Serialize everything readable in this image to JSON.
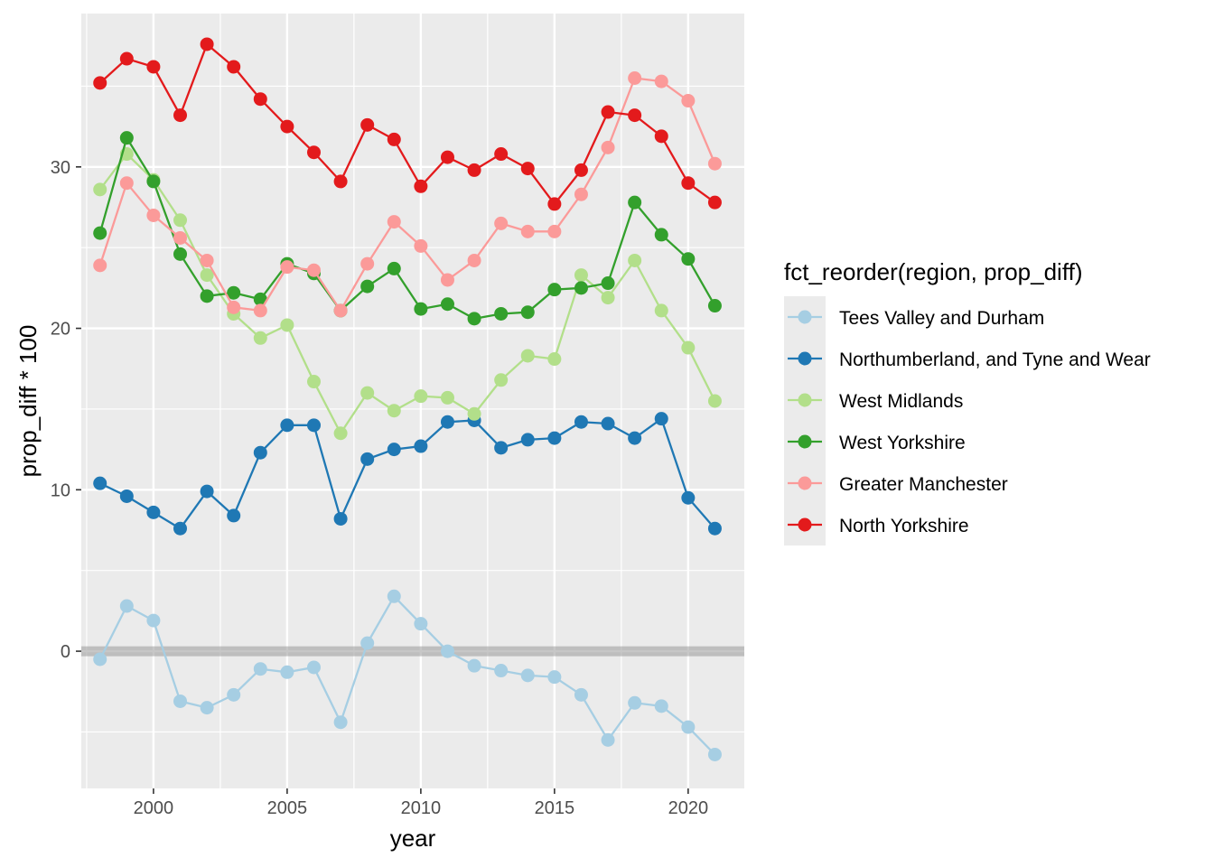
{
  "chart_data": {
    "type": "line",
    "xlabel": "year",
    "ylabel": "prop_diff * 100",
    "xlim": [
      1997.3,
      2022.1
    ],
    "ylim": [
      -8.5,
      39.5
    ],
    "x_ticks": [
      2000,
      2005,
      2010,
      2015,
      2020
    ],
    "y_ticks": [
      0,
      10,
      20,
      30
    ],
    "grid": true,
    "reference_line_y": 0,
    "legend": {
      "title": "fct_reorder(region, prop_diff)",
      "placement": "right"
    },
    "x": [
      1998,
      1999,
      2000,
      2001,
      2002,
      2003,
      2004,
      2005,
      2006,
      2007,
      2008,
      2009,
      2010,
      2011,
      2012,
      2013,
      2014,
      2015,
      2016,
      2017,
      2018,
      2019,
      2020,
      2021
    ],
    "series": [
      {
        "name": "Tees Valley and Durham",
        "color": "#a6cee3",
        "values": [
          -0.5,
          2.8,
          1.9,
          -3.1,
          -3.5,
          -2.7,
          -1.1,
          -1.3,
          -1.0,
          -4.4,
          0.5,
          3.4,
          1.7,
          0.0,
          -0.9,
          -1.2,
          -1.5,
          -1.6,
          -2.7,
          -5.5,
          -3.2,
          -3.4,
          -4.7,
          -6.4
        ]
      },
      {
        "name": "Northumberland, and Tyne and Wear",
        "color": "#1f78b4",
        "values": [
          10.4,
          9.6,
          8.6,
          7.6,
          9.9,
          8.4,
          12.3,
          14.0,
          14.0,
          8.2,
          11.9,
          12.5,
          12.7,
          14.2,
          14.3,
          12.6,
          13.1,
          13.2,
          14.2,
          14.1,
          13.2,
          14.4,
          9.5,
          7.6
        ]
      },
      {
        "name": "West Midlands",
        "color": "#b2df8a",
        "values": [
          28.6,
          30.8,
          29.2,
          26.7,
          23.3,
          20.9,
          19.4,
          20.2,
          16.7,
          13.5,
          16.0,
          14.9,
          15.8,
          15.7,
          14.7,
          16.8,
          18.3,
          18.1,
          23.3,
          21.9,
          24.2,
          21.1,
          18.8,
          15.5
        ]
      },
      {
        "name": "West Yorkshire",
        "color": "#33a02c",
        "values": [
          25.9,
          31.8,
          29.1,
          24.6,
          22.0,
          22.2,
          21.8,
          24.0,
          23.4,
          21.1,
          22.6,
          23.7,
          21.2,
          21.5,
          20.6,
          20.9,
          21.0,
          22.4,
          22.5,
          22.8,
          27.8,
          25.8,
          24.3,
          21.4
        ]
      },
      {
        "name": "Greater Manchester",
        "color": "#fb9a99",
        "values": [
          23.9,
          29.0,
          27.0,
          25.6,
          24.2,
          21.3,
          21.1,
          23.8,
          23.6,
          21.1,
          24.0,
          26.6,
          25.1,
          23.0,
          24.2,
          26.5,
          26.0,
          26.0,
          28.3,
          31.2,
          35.5,
          35.3,
          34.1,
          30.2
        ]
      },
      {
        "name": "North Yorkshire",
        "color": "#e31a1c",
        "values": [
          35.2,
          36.7,
          36.2,
          33.2,
          37.6,
          36.2,
          34.2,
          32.5,
          30.9,
          29.1,
          32.6,
          31.7,
          28.8,
          30.6,
          29.8,
          30.8,
          29.9,
          27.7,
          29.8,
          33.4,
          33.2,
          31.9,
          29.0,
          27.8
        ]
      }
    ]
  }
}
